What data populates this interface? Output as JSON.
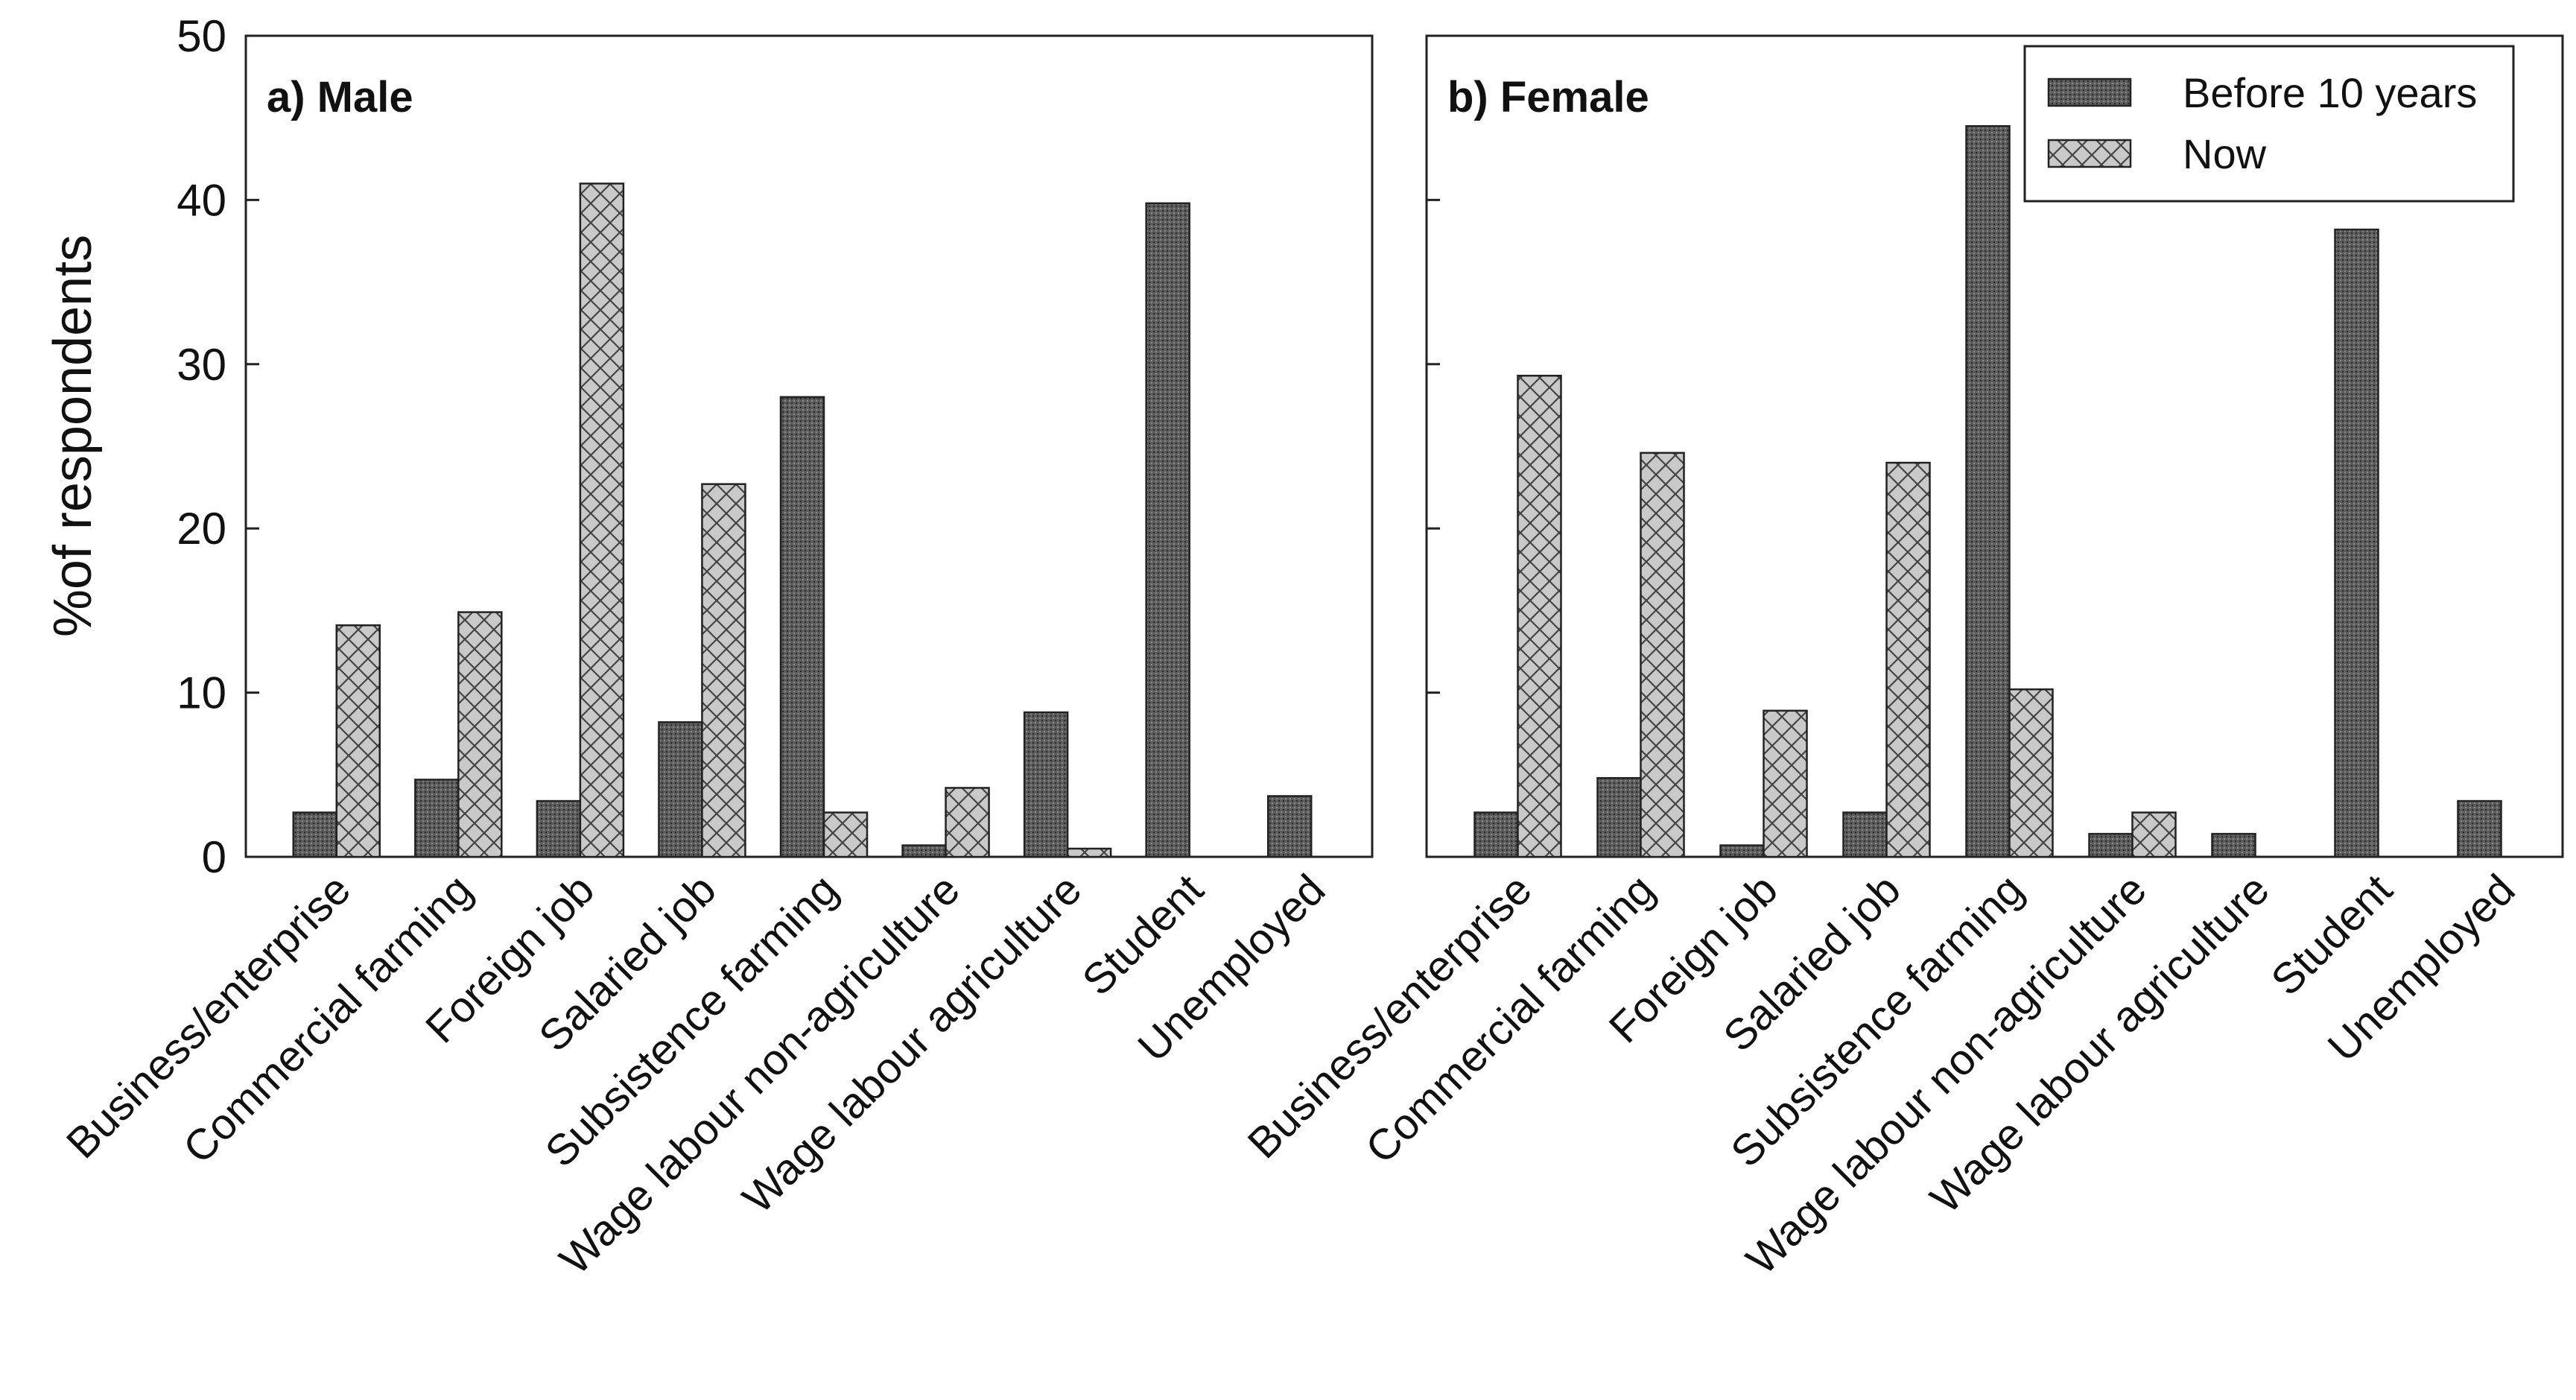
{
  "chart_data": {
    "type": "bar",
    "ylabel": "%of respondents",
    "ylim": [
      0,
      50
    ],
    "yticks": [
      0,
      10,
      20,
      30,
      40,
      50
    ],
    "series_names": [
      "Before 10 years",
      "Now"
    ],
    "colors": {
      "before": "#5a5a5a",
      "now": "#c8c8c8"
    },
    "legend": {
      "position": "top-right",
      "items": [
        "Before 10 years",
        "Now"
      ]
    },
    "categories": [
      "Business/enterprise",
      "Commercial farming",
      "Foreign job",
      "Salaried job",
      "Subsistence farming",
      "Wage labour non-agriculture",
      "Wage labour agriculture",
      "Student",
      "Unemployed"
    ],
    "panels": [
      {
        "title": "a) Male",
        "series": [
          {
            "name": "Before 10 years",
            "values": [
              2.7,
              4.7,
              3.4,
              8.2,
              28.0,
              0.7,
              8.8,
              39.8,
              3.7
            ]
          },
          {
            "name": "Now",
            "values": [
              14.1,
              14.9,
              41.0,
              22.7,
              2.7,
              4.2,
              0.5,
              0.0,
              0.0
            ]
          }
        ]
      },
      {
        "title": "b) Female",
        "series": [
          {
            "name": "Before 10 years",
            "values": [
              2.7,
              4.8,
              0.7,
              2.7,
              44.5,
              1.4,
              1.4,
              38.2,
              3.4
            ]
          },
          {
            "name": "Now",
            "values": [
              29.3,
              24.6,
              8.9,
              24.0,
              10.2,
              2.7,
              0.0,
              0.0,
              0.0
            ]
          }
        ]
      }
    ]
  }
}
